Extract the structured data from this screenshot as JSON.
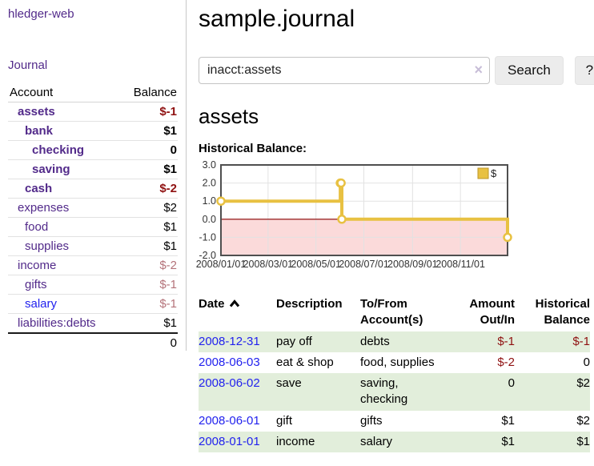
{
  "colors": {
    "link_purple": "#522a8a",
    "link_blue": "#2222ee",
    "negative_red": "#8f1111",
    "negative_soft_red": "#b4737a",
    "row_stripe_green": "#e2eedb",
    "chart_line_gold": "#e8c142",
    "chart_negative_fill_pink": "#fbdada",
    "chart_zero_line": "#8b0000"
  },
  "sidebar": {
    "app_title": "hledger-web",
    "journal_link": "Journal",
    "accounts_table": {
      "headers": {
        "account": "Account",
        "balance": "Balance"
      },
      "rows": [
        {
          "name": "assets",
          "balance": "$-1",
          "indent": 0,
          "bold": true,
          "name_style": "purple",
          "balance_style": "neg"
        },
        {
          "name": "bank",
          "balance": "$1",
          "indent": 1,
          "bold": true,
          "name_style": "purple",
          "balance_style": ""
        },
        {
          "name": "checking",
          "balance": "0",
          "indent": 2,
          "bold": true,
          "name_style": "purple",
          "balance_style": ""
        },
        {
          "name": "saving",
          "balance": "$1",
          "indent": 2,
          "bold": true,
          "name_style": "purple",
          "balance_style": ""
        },
        {
          "name": "cash",
          "balance": "$-2",
          "indent": 1,
          "bold": true,
          "name_style": "purple",
          "balance_style": "neg"
        },
        {
          "name": "expenses",
          "balance": "$2",
          "indent": 0,
          "bold": false,
          "name_style": "purple",
          "balance_style": ""
        },
        {
          "name": "food",
          "balance": "$1",
          "indent": 1,
          "bold": false,
          "name_style": "purple",
          "balance_style": ""
        },
        {
          "name": "supplies",
          "balance": "$1",
          "indent": 1,
          "bold": false,
          "name_style": "purple",
          "balance_style": ""
        },
        {
          "name": "income",
          "balance": "$-2",
          "indent": 0,
          "bold": false,
          "name_style": "purple",
          "balance_style": "negsoft"
        },
        {
          "name": "gifts",
          "balance": "$-1",
          "indent": 1,
          "bold": false,
          "name_style": "purple",
          "balance_style": "negsoft"
        },
        {
          "name": "salary",
          "balance": "$-1",
          "indent": 1,
          "bold": false,
          "name_style": "blue",
          "balance_style": "negsoft"
        },
        {
          "name": "liabilities:debts",
          "balance": "$1",
          "indent": 0,
          "bold": false,
          "name_style": "purple",
          "balance_style": ""
        }
      ],
      "total": "0"
    }
  },
  "main": {
    "title": "sample.journal",
    "search": {
      "query": "inacct:assets",
      "clear_icon": "×",
      "search_label": "Search",
      "help_label": "?"
    },
    "account_heading": "assets",
    "chart_label": "Historical Balance:"
  },
  "chart_data": {
    "type": "line",
    "step": true,
    "title": "Historical Balance",
    "series": [
      {
        "name": "$",
        "color": "#e8c142",
        "points": [
          [
            "2008-01-01",
            1
          ],
          [
            "2008-06-01",
            2
          ],
          [
            "2008-06-02",
            2
          ],
          [
            "2008-06-03",
            0
          ],
          [
            "2008-12-31",
            -1
          ]
        ]
      }
    ],
    "x_range": [
      "2008-01-01",
      "2008-12-31"
    ],
    "x_ticks": [
      "2008/01/01",
      "2008/03/01",
      "2008/05/01",
      "2008/07/01",
      "2008/09/01",
      "2008/11/01"
    ],
    "y_ticks": [
      3.0,
      2.0,
      1.0,
      0.0,
      -1.0,
      -2.0
    ],
    "ylim": [
      -2,
      3
    ],
    "grid": true,
    "negative_fill": "#fbdada",
    "zero_line_color": "#8b0000",
    "legend": {
      "label": "$",
      "position": "top-right"
    }
  },
  "register": {
    "headers": {
      "date": "Date",
      "description": "Description",
      "accounts": "To/From Account(s)",
      "amount": "Amount Out/In",
      "balance": "Historical Balance"
    },
    "rows": [
      {
        "date": "2008-12-31",
        "description": "pay off",
        "accounts": "debts",
        "amount": "$-1",
        "balance": "$-1",
        "amount_neg": true,
        "balance_neg": true
      },
      {
        "date": "2008-06-03",
        "description": "eat & shop",
        "accounts": "food, supplies",
        "amount": "$-2",
        "balance": "0",
        "amount_neg": true,
        "balance_neg": false
      },
      {
        "date": "2008-06-02",
        "description": "save",
        "accounts": "saving,\nchecking",
        "amount": "0",
        "balance": "$2",
        "amount_neg": false,
        "balance_neg": false
      },
      {
        "date": "2008-06-01",
        "description": "gift",
        "accounts": "gifts",
        "amount": "$1",
        "balance": "$2",
        "amount_neg": false,
        "balance_neg": false
      },
      {
        "date": "2008-01-01",
        "description": "income",
        "accounts": "salary",
        "amount": "$1",
        "balance": "$1",
        "amount_neg": false,
        "balance_neg": false
      }
    ]
  }
}
